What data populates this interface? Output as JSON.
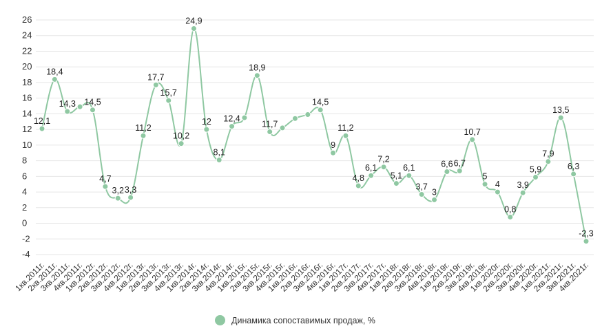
{
  "chart_data": {
    "type": "line",
    "categories": [
      "1кв.2011г.",
      "2кв.2011г.",
      "3кв.2011г.",
      "4кв.2011г.",
      "1кв.2012г.",
      "2кв.2012г.",
      "3кв.2012г.",
      "4кв.2012г.",
      "1кв.2013г.",
      "2кв.2013г.",
      "3кв.2013г.",
      "4кв.2013г.",
      "1кв.2014г.",
      "2кв.2014г.",
      "3кв.2014г.",
      "4кв.2014г.",
      "1кв.2015г.",
      "2кв.2015г.",
      "3кв.2015г.",
      "4кв.2015г.",
      "1кв.2016г.",
      "2кв.2016г.",
      "3кв.2016г.",
      "4кв.2016г.",
      "1кв.2017г.",
      "2кв.2017г.",
      "3кв.2017г.",
      "4кв.2017г.",
      "1кв.2018г.",
      "2кв.2018г.",
      "3кв.2018г.",
      "4кв.2018г.",
      "1кв.2019г.",
      "2кв.2019г.",
      "3кв.2019г.",
      "4кв.2019г.",
      "1кв.2020г.",
      "2кв.2020г.",
      "3кв.2020г.",
      "4кв.2020г.",
      "1кв.2021г.",
      "2кв.2021г.",
      "3кв.2021г.",
      "4кв.2021г."
    ],
    "series": [
      {
        "name": "Динамика сопоставимых продаж, %",
        "color": "#8fc8a2",
        "values": [
          12.1,
          18.4,
          14.3,
          14.9,
          14.5,
          4.7,
          3.2,
          3.3,
          11.2,
          17.7,
          15.7,
          10.2,
          24.9,
          12,
          8.1,
          12.4,
          13.5,
          18.9,
          11.7,
          12.2,
          13.4,
          13.9,
          14.5,
          9,
          11.2,
          4.8,
          6.1,
          7.2,
          5.1,
          6.1,
          3.7,
          3,
          6.6,
          6.7,
          10.7,
          5,
          4,
          0.8,
          3.9,
          5.9,
          7.9,
          13.5,
          6.3,
          -2.3
        ],
        "labels": [
          "12,1",
          "18,4",
          "14,3",
          "",
          "14,5",
          "4,7",
          "3,2",
          "3,3",
          "11,2",
          "17,7",
          "15,7",
          "10,2",
          "24,9",
          "12",
          "8,1",
          "12,4",
          "",
          "18,9",
          "11,7",
          "",
          "",
          "",
          "14,5",
          "9",
          "11,2",
          "4,8",
          "6,1",
          "7,2",
          "5,1",
          "6,1",
          "3,7",
          "3",
          "6,6",
          "6,7",
          "10,7",
          "5",
          "4",
          "0,8",
          "3,9",
          "5,9",
          "7,9",
          "13,5",
          "6,3",
          "-2,3"
        ]
      }
    ],
    "y_ticks": [
      "-4",
      "-2",
      "0",
      "2",
      "4",
      "6",
      "8",
      "10",
      "12",
      "14",
      "16",
      "18",
      "20",
      "22",
      "24",
      "26"
    ],
    "ylim": [
      -4,
      26
    ],
    "grid": true,
    "legend": "bottom-center"
  },
  "legend": {
    "label": "Динамика сопоставимых продаж, %",
    "color": "#8fc8a2"
  }
}
